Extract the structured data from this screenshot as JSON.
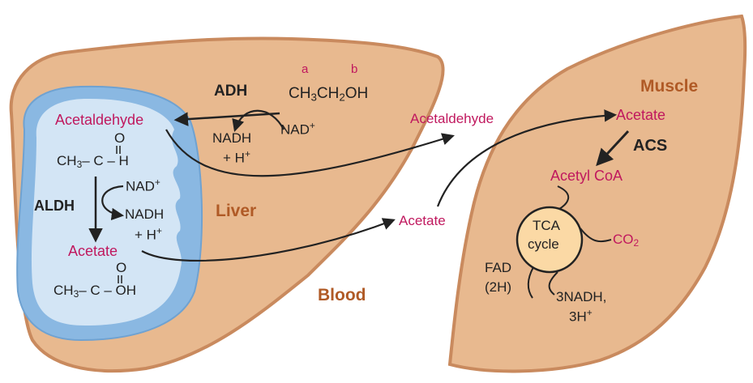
{
  "liver": {
    "label": "Liver",
    "ethanol": {
      "pre": "CH",
      "s1": "3",
      "mid": "CH",
      "s2": "2",
      "post": "OH"
    },
    "marker_a": "a",
    "marker_b": "b",
    "adh": "ADH",
    "nad_plus": {
      "text": "NAD",
      "sup": "+"
    },
    "nadh": "NADH",
    "h_plus_1": {
      "text": "+ H",
      "sup": "+"
    },
    "acetaldehyde": "Acetaldehyde",
    "aldh": "ALDH",
    "nad_plus_2": {
      "text": "NAD",
      "sup": "+"
    },
    "nadh_2": "NADH",
    "h_plus_2": {
      "text": "+ H",
      "sup": "+"
    },
    "acetate": "Acetate",
    "formula_ald": {
      "o": "O",
      "pre": "CH",
      "s": "3",
      "mid": "– C – H"
    },
    "formula_ace": {
      "o": "O",
      "pre": "CH",
      "s": "3",
      "mid": "– C – OH"
    }
  },
  "blood": {
    "label": "Blood",
    "acetaldehyde": "Acetaldehyde",
    "acetate": "Acetate"
  },
  "muscle": {
    "label": "Muscle",
    "acetate": "Acetate",
    "acs": "ACS",
    "acetyl_coa": "Acetyl CoA",
    "tca_line1": "TCA",
    "tca_line2": "cycle",
    "co2": {
      "text": "CO",
      "sub": "2"
    },
    "fad_line1": "FAD",
    "fad_line2": "(2H)",
    "nadh_line1": "3NADH,",
    "nadh_line2": {
      "text": "3H",
      "sup": "+"
    }
  },
  "colors": {
    "organ_fill": "#e8b98f",
    "organ_stroke": "#c98a5e",
    "mito_outer": "#8ab8e2",
    "mito_inner": "#d3e5f5",
    "tca_fill": "#fbd9a5",
    "pink_text": "#c0185e",
    "brown_text": "#b05a26",
    "arrow": "#222222"
  }
}
